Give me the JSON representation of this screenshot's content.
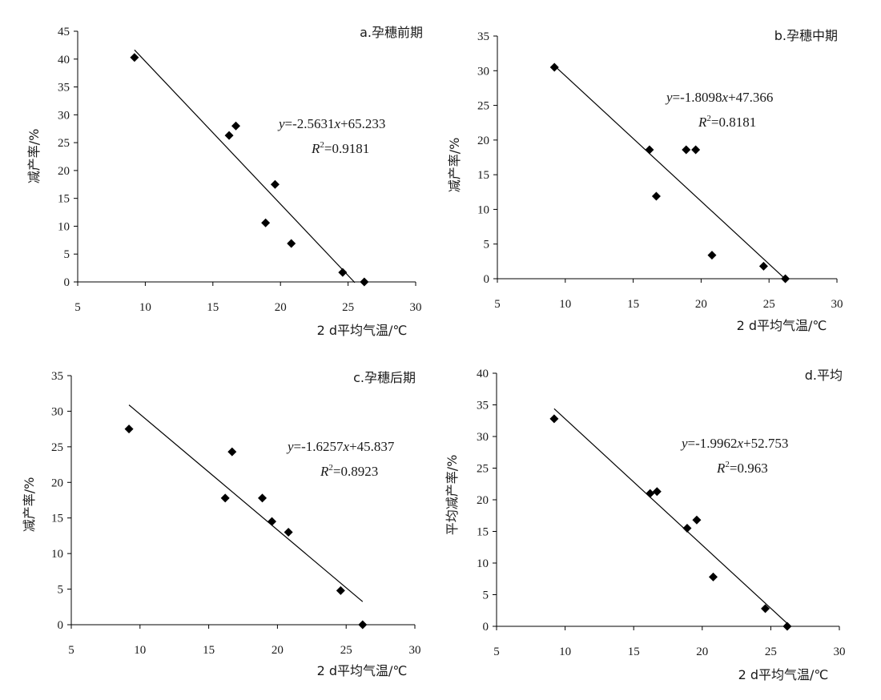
{
  "chart_data": [
    {
      "type": "scatter",
      "panel_title": "a.孕穗前期",
      "xlabel": "2 d平均气温/℃",
      "ylabel": "减产率/%",
      "xlim": [
        5,
        30
      ],
      "ylim": [
        0,
        45
      ],
      "xticks": [
        5,
        10,
        15,
        20,
        25,
        30
      ],
      "yticks": [
        0,
        5,
        10,
        15,
        20,
        25,
        30,
        35,
        40,
        45
      ],
      "points": [
        {
          "x": 9.2,
          "y": 40.3
        },
        {
          "x": 16.2,
          "y": 26.3
        },
        {
          "x": 16.7,
          "y": 28.0
        },
        {
          "x": 18.9,
          "y": 10.6
        },
        {
          "x": 19.6,
          "y": 17.5
        },
        {
          "x": 20.8,
          "y": 6.9
        },
        {
          "x": 24.6,
          "y": 1.7
        },
        {
          "x": 26.2,
          "y": 0.0
        }
      ],
      "fit": {
        "slope": -2.5631,
        "intercept": 65.233,
        "x_range": [
          9.2,
          25.5
        ]
      },
      "equation": {
        "y": "y",
        "eq1": "=-2.5631",
        "x": "x",
        "eq2": "+65.233",
        "R": "R",
        "sup": "2",
        "r2": "=0.9181"
      }
    },
    {
      "type": "scatter",
      "panel_title": "b.孕穗中期",
      "xlabel": "2 d平均气温/℃",
      "ylabel": "减产率/%",
      "xlim": [
        5,
        30
      ],
      "ylim": [
        0,
        35
      ],
      "xticks": [
        5,
        10,
        15,
        20,
        25,
        30
      ],
      "yticks": [
        0,
        5,
        10,
        15,
        20,
        25,
        30,
        35
      ],
      "points": [
        {
          "x": 9.2,
          "y": 30.5
        },
        {
          "x": 16.2,
          "y": 18.6
        },
        {
          "x": 16.7,
          "y": 11.9
        },
        {
          "x": 18.9,
          "y": 18.6
        },
        {
          "x": 19.6,
          "y": 18.6
        },
        {
          "x": 20.8,
          "y": 3.4
        },
        {
          "x": 24.6,
          "y": 1.8
        },
        {
          "x": 26.2,
          "y": 0.0
        }
      ],
      "fit": {
        "slope": -1.8098,
        "intercept": 47.366,
        "x_range": [
          9.2,
          26.2
        ]
      },
      "equation": {
        "y": "y",
        "eq1": "=-1.8098",
        "x": "x",
        "eq2": "+47.366",
        "R": "R",
        "sup": "2",
        "r2": "=0.8181"
      }
    },
    {
      "type": "scatter",
      "panel_title": "c.孕穗后期",
      "xlabel": "2 d平均气温/℃",
      "ylabel": "减产率/%",
      "xlim": [
        5,
        30
      ],
      "ylim": [
        0,
        35
      ],
      "xticks": [
        5,
        10,
        15,
        20,
        25,
        30
      ],
      "yticks": [
        0,
        5,
        10,
        15,
        20,
        25,
        30,
        35
      ],
      "points": [
        {
          "x": 9.2,
          "y": 27.5
        },
        {
          "x": 16.2,
          "y": 17.8
        },
        {
          "x": 16.7,
          "y": 24.3
        },
        {
          "x": 18.9,
          "y": 17.8
        },
        {
          "x": 19.6,
          "y": 14.5
        },
        {
          "x": 20.8,
          "y": 13.0
        },
        {
          "x": 24.6,
          "y": 4.8
        },
        {
          "x": 26.2,
          "y": 0.0
        }
      ],
      "fit": {
        "slope": -1.6257,
        "intercept": 45.837,
        "x_range": [
          9.2,
          26.2
        ]
      },
      "equation": {
        "y": "y",
        "eq1": "=-1.6257",
        "x": "x",
        "eq2": "+45.837",
        "R": "R",
        "sup": "2",
        "r2": "=0.8923"
      }
    },
    {
      "type": "scatter",
      "panel_title": "d.平均",
      "xlabel": "2 d平均气温/℃",
      "ylabel": "平均减产率/%",
      "xlim": [
        5,
        30
      ],
      "ylim": [
        0,
        40
      ],
      "xticks": [
        5,
        10,
        15,
        20,
        25,
        30
      ],
      "yticks": [
        0,
        5,
        10,
        15,
        20,
        25,
        30,
        35,
        40
      ],
      "points": [
        {
          "x": 9.2,
          "y": 32.8
        },
        {
          "x": 16.2,
          "y": 21.0
        },
        {
          "x": 16.7,
          "y": 21.3
        },
        {
          "x": 18.9,
          "y": 15.5
        },
        {
          "x": 19.6,
          "y": 16.8
        },
        {
          "x": 20.8,
          "y": 7.8
        },
        {
          "x": 24.6,
          "y": 2.8
        },
        {
          "x": 26.2,
          "y": 0.0
        }
      ],
      "fit": {
        "slope": -1.9962,
        "intercept": 52.753,
        "x_range": [
          9.2,
          26.2
        ]
      },
      "equation": {
        "y": "y",
        "eq1": "=-1.9962",
        "x": "x",
        "eq2": "+52.753",
        "R": "R",
        "sup": "2",
        "r2": "=0.963"
      }
    }
  ]
}
